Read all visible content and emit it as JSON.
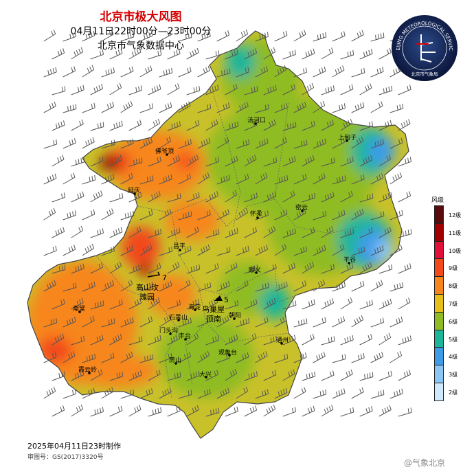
{
  "header": {
    "title": "北京市极大风图",
    "time_range": "04月11日22时00分—23时00分",
    "issuer": "北京市气象数据中心"
  },
  "legend": {
    "title": "风级",
    "levels": [
      {
        "label": "12级",
        "color": "#5a0a0a"
      },
      {
        "label": "11级",
        "color": "#a00000"
      },
      {
        "label": "10级",
        "color": "#e0103a"
      },
      {
        "label": "9级",
        "color": "#f24a1a"
      },
      {
        "label": "8级",
        "color": "#f7861e"
      },
      {
        "label": "7级",
        "color": "#e8bf1a"
      },
      {
        "label": "6级",
        "color": "#8fbc23"
      },
      {
        "label": "5级",
        "color": "#1fb59a"
      },
      {
        "label": "4级",
        "color": "#3d9be8"
      },
      {
        "label": "3级",
        "color": "#8cc6f5"
      },
      {
        "label": "2级",
        "color": "#cfe8fb"
      }
    ]
  },
  "districts": {
    "tanghekou": "汤河口",
    "shangdianzi": "上甸子",
    "fuyeding": "佛爷顶",
    "yanqing": "延庆",
    "huairou": "怀柔",
    "miyun": "密云",
    "changping": "昌平",
    "pinggu": "平谷",
    "shunyi": "顺义",
    "gaoshan_1": "高山玫",
    "gaoshan_2": "瑰园",
    "haidian": "海淀",
    "niaochao_1": "鸟巢屋",
    "niaochao_2": "顶南",
    "chaoyang": "朝阳",
    "shijingshan": "石景山",
    "zhaitang": "斋堂",
    "mentougou": "门头沟",
    "fengtai": "丰台",
    "tongzhou": "通州",
    "fangshan": "房山",
    "guanxiangtai": "观象台",
    "xiayunling": "霞云岭",
    "daxing": "大兴"
  },
  "peaks": {
    "gaoshan_value": "7",
    "niaochao_value": "5"
  },
  "logo": {
    "arc_text": "BEIJING METEOROLOGICAL SERVICE",
    "cn_text": "北京市气象局"
  },
  "footer": {
    "made_at": "2025年04月11日23时制作",
    "map_review": "审图号：GS(2017)3320号",
    "watermark": "@气象北京"
  }
}
